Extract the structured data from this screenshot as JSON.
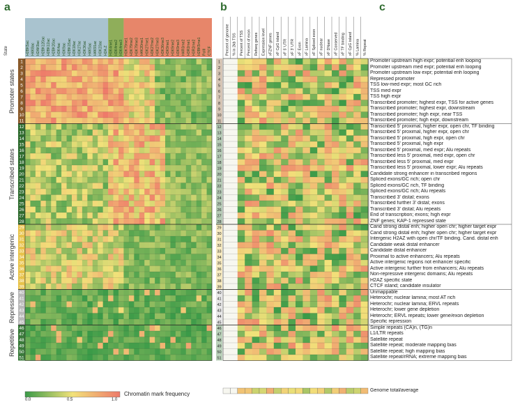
{
  "panels": {
    "a": "a",
    "b": "b",
    "c": "c"
  },
  "state_header": "State",
  "groups": [
    {
      "name": "Promoter states",
      "start": 1,
      "end": 11,
      "color": "#8a5a2b"
    },
    {
      "name": "Transcribed states",
      "start": 12,
      "end": 28,
      "color": "#2e6b2e"
    },
    {
      "name": "Active intergenic",
      "start": 29,
      "end": 39,
      "color": "#e8c34a"
    },
    {
      "name": "Repressive",
      "start": 40,
      "end": 45,
      "color": "#b9b9b9"
    },
    {
      "name": "Repetitive",
      "start": 46,
      "end": 51,
      "color": "#3a7a3a"
    }
  ],
  "marks": [
    "H2BK5ac",
    "H4K8ac",
    "H2AK9ac",
    "H2BK120ac",
    "H2BK12ac",
    "H2BK20ac",
    "H3K4ac",
    "H3K9ac",
    "H2BK15ac",
    "H3K18ac",
    "H3K27ac",
    "H3K36ac",
    "H4K5ac",
    "H4K91ac",
    "H3K23ac",
    "H2A.Z",
    "H3K4me1",
    "H3K4me2",
    "H3K4me3",
    "H3K79me1",
    "H3K79me2",
    "H3K79me3",
    "H4K20me1",
    "H3K27me1",
    "H3K27me2",
    "H3K27me3",
    "H3K36me3",
    "H3K9me1",
    "H3K9me2",
    "H3K9me3",
    "H4R3me2",
    "H3R2me1",
    "H3R2me2",
    "H2BK5me1",
    "PolII",
    "CTCF"
  ],
  "annot_cols": [
    "Percent of genome",
    "% in 2kb TSS",
    "Percent of TSS",
    "Percent of exon",
    "Refseq genes",
    "Expression level",
    "xFZNF genes",
    "xF CpG island",
    "xF 5' UTR",
    "xF 3' UTR",
    "xF Exon",
    "xF Lamina",
    "xF Spliced exon",
    "xF nuclear",
    "xF DNase",
    "xF Conserved",
    "xF TF binding",
    "xF CpG island",
    "% Lamina",
    "% Repeat"
  ],
  "descriptions": [
    "Promoter upstream high expr; potential enh looping",
    "Promoter upstream med expr; potential enh looping",
    "Promoter upstream low expr; potential enh looping",
    "Repressed promoter",
    "TSS low-med expr; most GC rich",
    "TSS med expr",
    "TSS high expr",
    "Transcribed promoter; highest expr, TSS for active genes",
    "Transcribed promoter; highest expr, downstream",
    "Transcribed promoter; high expr, near TSS",
    "Transcribed promoter; high expr, downstream",
    "Transcribed 5' proximal, higher expr, open chr, TF binding",
    "Transcribed 5' proximal, higher expr, open chr",
    "Transcribed 5' proximal, high expr, open chr",
    "Transcribed 5' proximal, high expr",
    "Transcribed 5' proximal, med expr; Alu repeats",
    "Transcribed less 5' proximal, med expr, open chr",
    "Transcribed less 5' proximal, med expr",
    "Transcribed less 5' proximal, lower expr; Alu repeats",
    "Candidate strong enhancer in transcribed regions",
    "Spliced exons/GC rich; open chr",
    "Spliced exons/GC rich, TF binding",
    "Spliced exons/GC rich; Alu repeats",
    "Transcribed 3' distal; exons",
    "Transcribed further 3' distal; exons",
    "Transcribed 3' distal; Alu repeats",
    "End of transcription; exons; high expr",
    "ZNF genes; KAP-1 repressed state",
    "Cand strong distal enh; higher open chr; higher target expr",
    "Cand strong distal enh; higher open chr; higher target expr",
    "Intergenic H2AZ with open chr/TF binding. Cand. distal enh",
    "Candidate weak distal enhancer",
    "Candidate distal enhancer",
    "Proximal to active enhancers; Alu repeats",
    "Active intergenic regions not enhancer specific",
    "Active intergenic further from enhancers; Alu repeats",
    "Non-repressive intergenic domains; Alu repeats",
    "H2AZ specific state",
    "CTCF island; candidate insulator",
    "Unmappable",
    "Heterochr; nuclear lamina; most AT rich",
    "Heterochr; nuclear lamina; ERVL repeats",
    "Heterochr; lower gene depletion",
    "Heterochr; ERVL repeats; lower gene/exon depletion",
    "Specific repression",
    "Simple repeats (CA)n, (TG)n",
    "L1/LTR repeats",
    "Satellite repeat",
    "Satellite repeat; moderate mapping bias",
    "Satellite repeat; high mapping bias",
    "Satellite repeat/rRNA; extreme mapping bias"
  ],
  "total_label": "Genome total/average",
  "legend": {
    "label": "Chromatin mark frequency",
    "low": "0.0",
    "mid": "0.5",
    "high": "1.0"
  },
  "colors": {
    "low": "#3a9a48",
    "mid": "#f2e27a",
    "high": "#ee7a6a"
  }
}
